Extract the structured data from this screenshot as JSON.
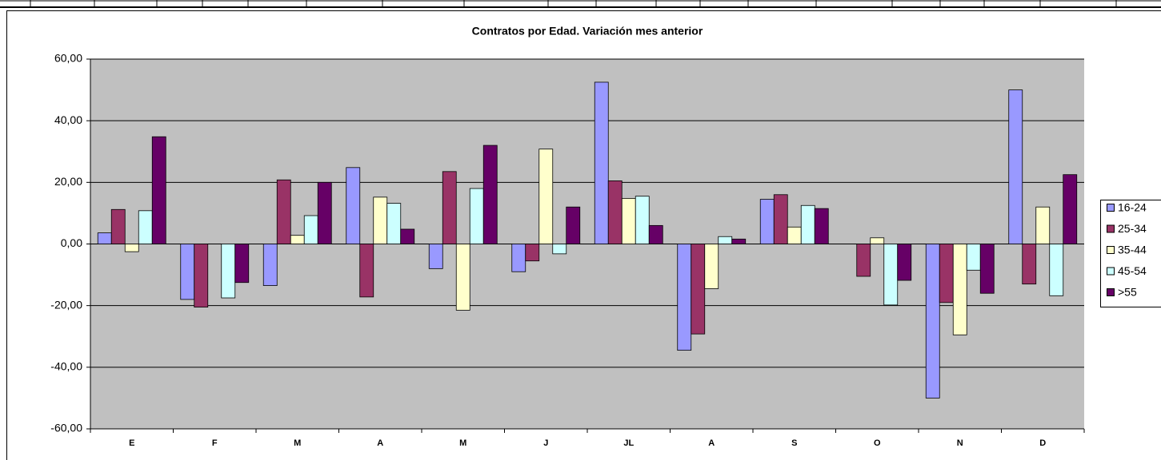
{
  "chart_data": {
    "type": "bar",
    "title": "Contratos por Edad. Variación mes anterior",
    "categories": [
      "E",
      "F",
      "M",
      "A",
      "M",
      "J",
      "JL",
      "A",
      "S",
      "O",
      "N",
      "D"
    ],
    "series": [
      {
        "name": "16-24",
        "color": "#9999FF",
        "values": [
          3.6,
          -18,
          -13.5,
          24.8,
          -8,
          -9,
          52.5,
          -34.5,
          14.5,
          0,
          -50,
          50
        ]
      },
      {
        "name": "25-34",
        "color": "#993366",
        "values": [
          11.2,
          -20.5,
          20.8,
          -17.2,
          23.5,
          -5.5,
          20.5,
          -29.2,
          16,
          -10.5,
          -19,
          -13
        ]
      },
      {
        "name": "35-44",
        "color": "#FFFFCC",
        "values": [
          -2.5,
          0,
          2.8,
          15.2,
          -21.5,
          30.8,
          14.8,
          -14.5,
          5.5,
          2,
          -29.5,
          12
        ]
      },
      {
        "name": "45-54",
        "color": "#CCFFFF",
        "values": [
          10.8,
          -17.5,
          9.2,
          13.2,
          18,
          -3.2,
          15.5,
          2.4,
          12.5,
          -19.8,
          -8.5,
          -16.8
        ]
      },
      {
        "name": ">55",
        "color": "#660066",
        "values": [
          34.8,
          -12.5,
          20,
          4.8,
          32,
          12,
          6,
          1.6,
          11.5,
          -11.8,
          -16,
          22.5
        ]
      }
    ],
    "ylim": [
      -60,
      60
    ],
    "yticks": [
      {
        "value": -60,
        "label": "-60,00"
      },
      {
        "value": -40,
        "label": "-40,00"
      },
      {
        "value": -20,
        "label": "-20,00"
      },
      {
        "value": 0,
        "label": "0,00"
      },
      {
        "value": 20,
        "label": "20,00"
      },
      {
        "value": 40,
        "label": "40,00"
      },
      {
        "value": 60,
        "label": "60,00"
      }
    ],
    "grid": true,
    "legend": "right"
  }
}
